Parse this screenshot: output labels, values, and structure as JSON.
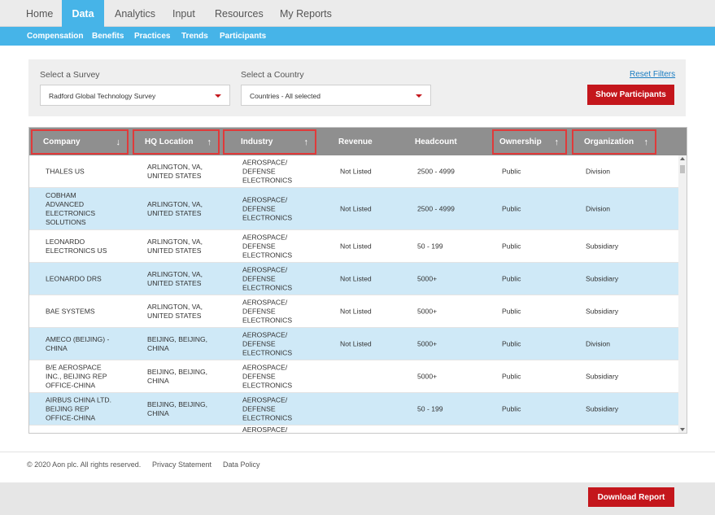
{
  "nav": {
    "tabs": [
      {
        "label": "Home"
      },
      {
        "label": "Data"
      },
      {
        "label": "Analytics"
      },
      {
        "label": "Input"
      },
      {
        "label": "Resources"
      },
      {
        "label": "My Reports"
      }
    ],
    "subtabs": [
      {
        "label": "Compensation"
      },
      {
        "label": "Benefits"
      },
      {
        "label": "Practices"
      },
      {
        "label": "Trends"
      },
      {
        "label": "Participants"
      }
    ]
  },
  "filters": {
    "survey_label": "Select a Survey",
    "survey_value": "Radford Global Technology Survey",
    "country_label": "Select a Country",
    "country_value": "Countries - All selected",
    "reset_label": "Reset Filters",
    "show_button": "Show Participants"
  },
  "table": {
    "columns": [
      {
        "label": "Company",
        "arrow": "↓"
      },
      {
        "label": "HQ Location",
        "arrow": "↑"
      },
      {
        "label": "Industry",
        "arrow": "↑"
      },
      {
        "label": "Revenue",
        "arrow": ""
      },
      {
        "label": "Headcount",
        "arrow": ""
      },
      {
        "label": "Ownership",
        "arrow": "↑"
      },
      {
        "label": "Organization",
        "arrow": "↑"
      }
    ],
    "rows": [
      {
        "company": "THALES US",
        "hq": "ARLINGTON, VA,\nUNITED STATES",
        "industry": "AEROSPACE/\nDEFENSE\nELECTRONICS",
        "revenue": "Not Listed",
        "headcount": "2500 - 4999",
        "ownership": "Public",
        "organization": "Division"
      },
      {
        "company": "COBHAM\nADVANCED\nELECTRONICS\nSOLUTIONS",
        "hq": "ARLINGTON, VA,\nUNITED STATES",
        "industry": "AEROSPACE/\nDEFENSE\nELECTRONICS",
        "revenue": "Not Listed",
        "headcount": "2500 - 4999",
        "ownership": "Public",
        "organization": "Division"
      },
      {
        "company": "LEONARDO\nELECTRONICS US",
        "hq": "ARLINGTON, VA,\nUNITED STATES",
        "industry": "AEROSPACE/\nDEFENSE\nELECTRONICS",
        "revenue": "Not Listed",
        "headcount": "50 - 199",
        "ownership": "Public",
        "organization": "Subsidiary"
      },
      {
        "company": "LEONARDO DRS",
        "hq": "ARLINGTON, VA,\nUNITED STATES",
        "industry": "AEROSPACE/\nDEFENSE\nELECTRONICS",
        "revenue": "Not Listed",
        "headcount": "5000+",
        "ownership": "Public",
        "organization": "Subsidiary"
      },
      {
        "company": "BAE SYSTEMS",
        "hq": "ARLINGTON, VA,\nUNITED STATES",
        "industry": "AEROSPACE/\nDEFENSE\nELECTRONICS",
        "revenue": "Not Listed",
        "headcount": "5000+",
        "ownership": "Public",
        "organization": "Subsidiary"
      },
      {
        "company": "AMECO (BEIJING) -\nCHINA",
        "hq": "BEIJING, BEIJING,\nCHINA",
        "industry": "AEROSPACE/\nDEFENSE\nELECTRONICS",
        "revenue": "Not Listed",
        "headcount": "5000+",
        "ownership": "Public",
        "organization": "Division"
      },
      {
        "company": "B/E AEROSPACE\nINC., BEIJING REP\nOFFICE-CHINA",
        "hq": "BEIJING, BEIJING,\nCHINA",
        "industry": "AEROSPACE/\nDEFENSE\nELECTRONICS",
        "revenue": "",
        "headcount": "5000+",
        "ownership": "Public",
        "organization": "Subsidiary"
      },
      {
        "company": "AIRBUS CHINA LTD.\nBEIJING REP\nOFFICE-CHINA",
        "hq": "BEIJING, BEIJING,\nCHINA",
        "industry": "AEROSPACE/\nDEFENSE\nELECTRONICS",
        "revenue": "",
        "headcount": "50 - 199",
        "ownership": "Public",
        "organization": "Subsidiary"
      },
      {
        "company": "",
        "hq": "",
        "industry": "AEROSPACE/",
        "revenue": "",
        "headcount": "",
        "ownership": "",
        "organization": ""
      }
    ]
  },
  "footer": {
    "copyright": "© 2020 Aon plc. All rights reserved.",
    "privacy": "Privacy Statement",
    "data_policy": "Data Policy"
  },
  "download_button": "Download Report",
  "colors": {
    "accent": "#46b4e8",
    "button_red": "#c4161c",
    "header_gray": "#8f8f8f",
    "row_alt": "#cfe9f7"
  }
}
